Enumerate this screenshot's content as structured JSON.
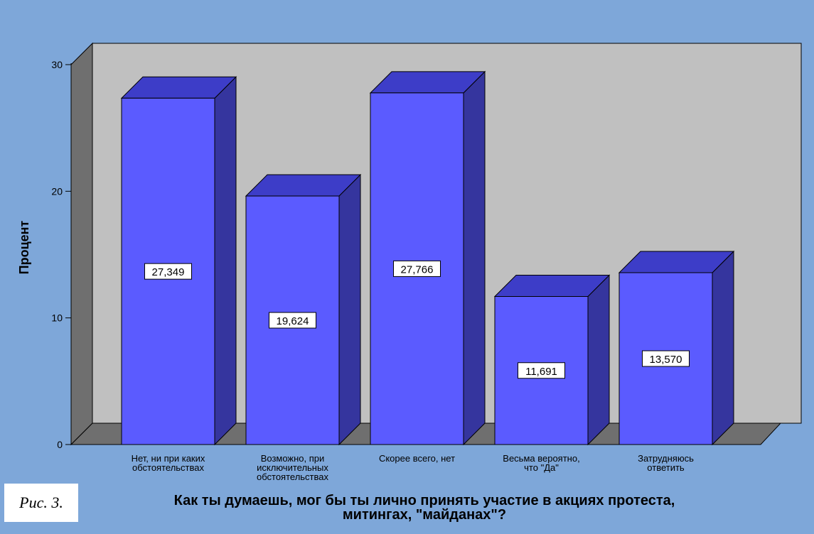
{
  "figure": {
    "caption": "Рис. 3."
  },
  "colors": {
    "page_background": "#7ea7d9",
    "plot_back_wall": "#c0c0c0",
    "plot_floor_and_side": "#6f6f6f",
    "bar_front": "#5b5bff",
    "bar_top": "#3d3dc8",
    "bar_side": "#35359e"
  },
  "chart_data": {
    "type": "bar",
    "style": "3d",
    "title": "",
    "xlabel_lines": [
      "Как ты думаешь, мог бы ты лично принять участие в акциях протеста,",
      "митингах, \"майданах\"?"
    ],
    "ylabel": "Процент",
    "ylim": [
      0,
      30
    ],
    "yticks": [
      0,
      10,
      20,
      30
    ],
    "grid": false,
    "legend": "none",
    "categories": [
      [
        "Нет, ни при каких",
        "обстоятельствах"
      ],
      [
        "Возможно, при",
        "исключительных",
        "обстоятельствах"
      ],
      [
        "Скорее всего, нет"
      ],
      [
        "Весьма вероятно,",
        "что \"Да\""
      ],
      [
        "Затрудняюсь",
        "ответить"
      ]
    ],
    "values": [
      27.349,
      19.624,
      27.766,
      11.691,
      13.57
    ],
    "data_labels": [
      "27,349",
      "19,624",
      "27,766",
      "11,691",
      "13,570"
    ]
  }
}
